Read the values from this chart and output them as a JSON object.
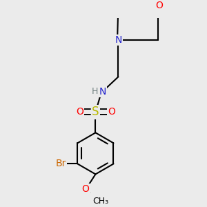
{
  "bg_color": "#ebebeb",
  "bond_color": "#000000",
  "bond_width": 1.5,
  "colors": {
    "N": "#2020cc",
    "O": "#ff0000",
    "S": "#b8b800",
    "Br": "#cc6600",
    "H": "#708080",
    "C": "#000000"
  },
  "font_size": 10,
  "fig_bg": "#ebebeb"
}
